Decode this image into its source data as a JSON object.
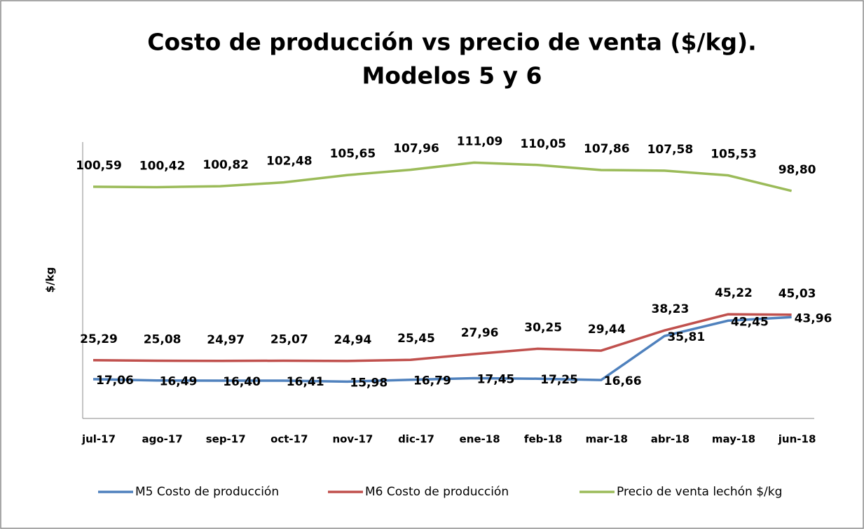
{
  "chart_data": {
    "type": "line",
    "title": [
      "Costo de producción vs precio de venta ($/kg).",
      "Modelos 5 y 6"
    ],
    "y_label": "$/kg",
    "categories": [
      "jul-17",
      "ago-17",
      "sep-17",
      "oct-17",
      "nov-17",
      "dic-17",
      "ene-18",
      "feb-18",
      "mar-18",
      "abr-18",
      "may-18",
      "jun-18"
    ],
    "ylim": [
      0,
      120
    ],
    "legend": "bottom",
    "series": [
      {
        "name": "M5 Costo de producción",
        "color": "#4f81bd",
        "values": [
          17.06,
          16.49,
          16.4,
          16.41,
          15.98,
          16.79,
          17.45,
          17.25,
          16.66,
          35.81,
          42.45,
          43.96
        ],
        "value_labels": [
          "17,06",
          "16,49",
          "16,40",
          "16,41",
          "15,98",
          "16,79",
          "17,45",
          "17,25",
          "16,66",
          "35,81",
          "42,45",
          "43,96"
        ]
      },
      {
        "name": "M6 Costo de producción",
        "color": "#c0504d",
        "values": [
          25.29,
          25.08,
          24.97,
          25.07,
          24.94,
          25.45,
          27.96,
          30.25,
          29.44,
          38.23,
          45.22,
          45.03
        ],
        "value_labels": [
          "25,29",
          "25,08",
          "24,97",
          "25,07",
          "24,94",
          "25,45",
          "27,96",
          "30,25",
          "29,44",
          "38,23",
          "45,22",
          "45,03"
        ]
      },
      {
        "name": "Precio de venta lechón $/kg",
        "color": "#9bbb59",
        "values": [
          100.59,
          100.42,
          100.82,
          102.48,
          105.65,
          107.96,
          111.09,
          110.05,
          107.86,
          107.58,
          105.53,
          98.8
        ],
        "value_labels": [
          "100,59",
          "100,42",
          "100,82",
          "102,48",
          "105,65",
          "107,96",
          "111,09",
          "110,05",
          "107,86",
          "107,58",
          "105,53",
          "98,80"
        ]
      }
    ]
  }
}
